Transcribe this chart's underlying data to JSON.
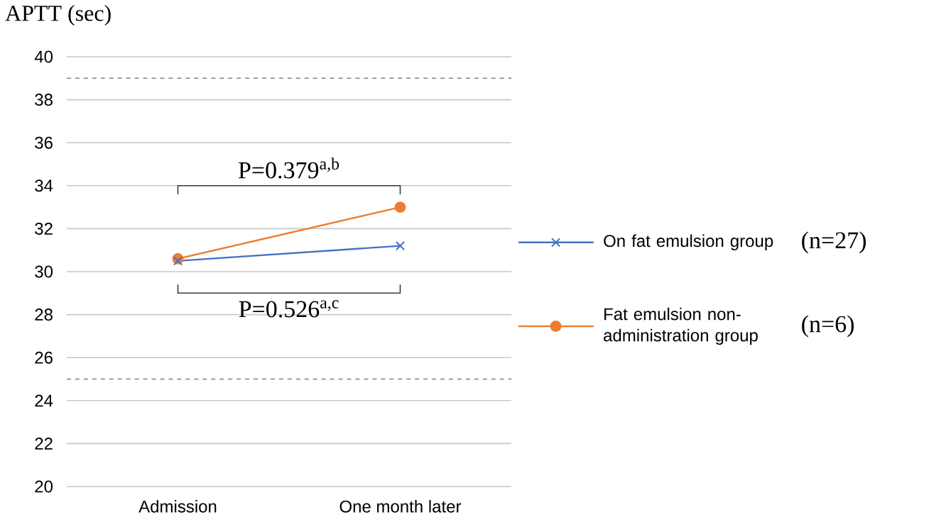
{
  "chart_data": {
    "type": "line",
    "ylabel": "APTT (sec)",
    "categories": [
      "Admission",
      "One month later"
    ],
    "series": [
      {
        "name": "On fat emulsion group",
        "color": "#4472c4",
        "marker": "cross",
        "values": [
          30.5,
          31.2
        ]
      },
      {
        "name": "Fat emulsion non-administration group",
        "color": "#ed7d31",
        "marker": "circle",
        "values": [
          30.6,
          33.0
        ]
      }
    ],
    "ylim": [
      20,
      40
    ],
    "yticks": [
      20,
      22,
      24,
      26,
      28,
      30,
      32,
      34,
      36,
      38,
      40
    ],
    "grid": "y",
    "legend": "right",
    "ref_lines": [
      {
        "axis": "y",
        "value": 39,
        "color": "#808080",
        "line_style": "dashed"
      },
      {
        "axis": "y",
        "value": 25,
        "color": "#808080",
        "line_style": "dashed"
      }
    ],
    "annotations": [
      "P=0.379$^{a,b}$",
      "P=0.526$^{a,c}$",
      "(n=27)",
      "(n=6)"
    ]
  }
}
